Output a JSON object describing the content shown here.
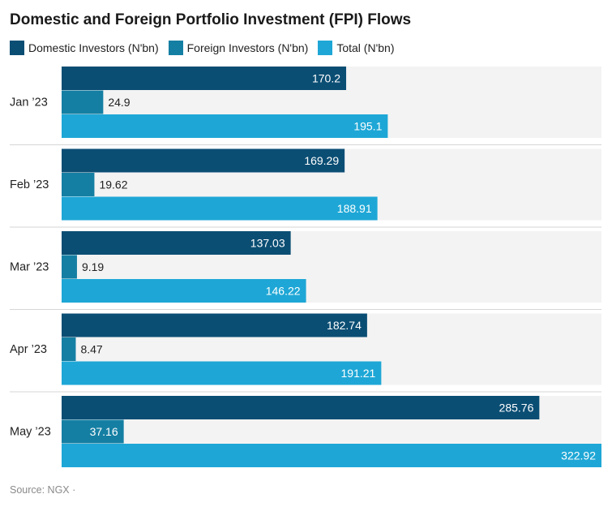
{
  "chart_data": {
    "type": "bar",
    "orientation": "horizontal",
    "title": "Domestic and Foreign Portfolio Investment (FPI) Flows",
    "categories": [
      "Jan ’23",
      "Feb ’23",
      "Mar ’23",
      "Apr ’23",
      "May ’23"
    ],
    "series": [
      {
        "name": "Domestic Investors (N'bn)",
        "color": "#0b4e74",
        "values": [
          170.2,
          169.29,
          137.03,
          182.74,
          285.76
        ]
      },
      {
        "name": "Foreign Investors (N'bn)",
        "color": "#157fa3",
        "values": [
          24.9,
          19.62,
          9.19,
          8.47,
          37.16
        ]
      },
      {
        "name": "Total (N'bn)",
        "color": "#1ea7d6",
        "values": [
          195.1,
          188.91,
          146.22,
          191.21,
          322.92
        ]
      }
    ],
    "value_labels": [
      [
        "170.2",
        "169.29",
        "137.03",
        "182.74",
        "285.76"
      ],
      [
        "24.9",
        "19.62",
        "9.19",
        "8.47",
        "37.16"
      ],
      [
        "195.1",
        "188.91",
        "146.22",
        "191.21",
        "322.92"
      ]
    ],
    "xlim": [
      0,
      322.92
    ],
    "legend": "top-left",
    "grid": false
  },
  "source": "Source: NGX ·",
  "colors": {
    "panel_background": "#f3f3f3",
    "separator": "#d6d6d6"
  }
}
